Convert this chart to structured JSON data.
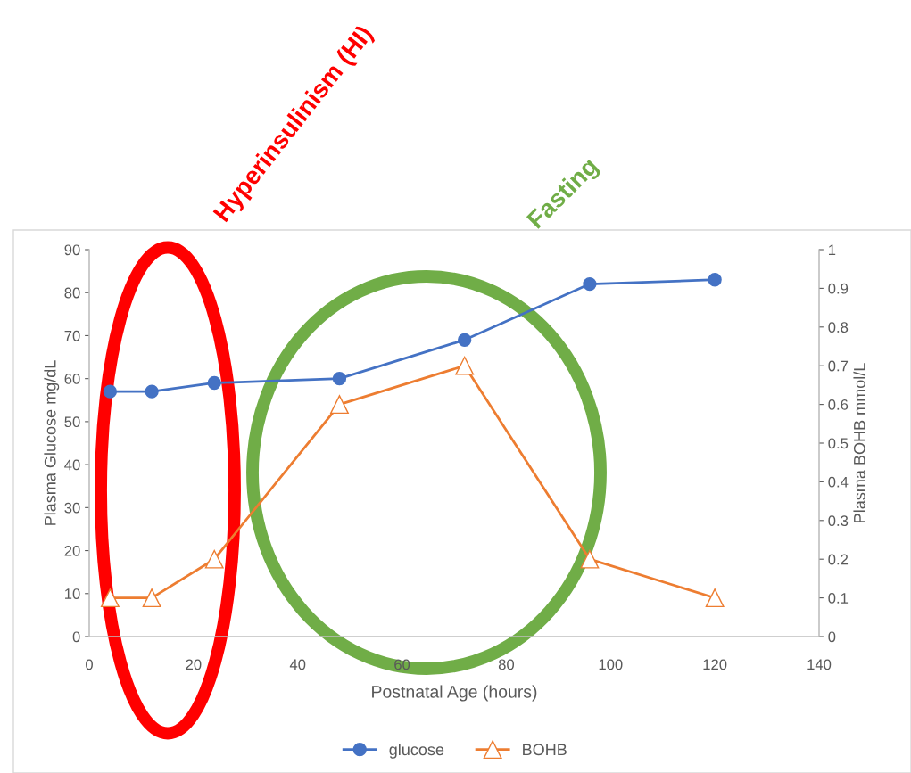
{
  "chart_data": {
    "type": "line",
    "x": [
      4,
      12,
      24,
      48,
      72,
      96,
      120
    ],
    "series": [
      {
        "name": "glucose",
        "color": "#4472c4",
        "marker": "circle",
        "values": [
          57,
          57,
          59,
          60,
          69,
          82,
          83
        ]
      },
      {
        "name": "BOHB",
        "color": "#ed7d31",
        "marker": "triangle",
        "axis": "y2",
        "values": [
          0.1,
          0.1,
          0.2,
          0.6,
          0.7,
          0.2,
          0.1
        ]
      }
    ],
    "xlabel": "Postnatal Age (hours)",
    "ylabel": "Plasma Glucose mg/dL",
    "y2label": "Plasma BOHB mmol/L",
    "xlim": [
      0,
      140
    ],
    "xticks": [
      0,
      20,
      40,
      60,
      80,
      100,
      120,
      140
    ],
    "ylim": [
      0,
      90
    ],
    "yticks": [
      0,
      10,
      20,
      30,
      40,
      50,
      60,
      70,
      80,
      90
    ],
    "y2lim": [
      0,
      1
    ],
    "y2ticks": [
      0,
      0.1,
      0.2,
      0.3,
      0.4,
      0.5,
      0.6,
      0.7,
      0.8,
      0.9,
      1
    ],
    "annotations": [
      "Hyperinsulinism (HI)",
      "Fasting"
    ],
    "grid": false,
    "legend": "bottom",
    "line_style": "solid"
  }
}
